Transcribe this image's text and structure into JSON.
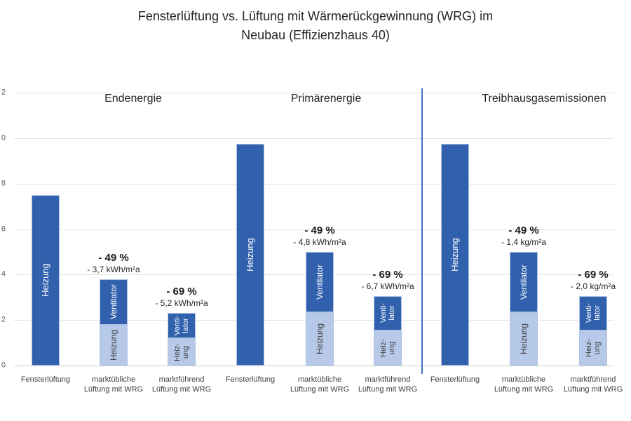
{
  "title": {
    "line1": "Fensterlüftung vs. Lüftung mit Wärmerückgewinnung (WRG) im",
    "line2": "Neubau (Effizienzhaus 40)"
  },
  "colors": {
    "bar_dark": "#3161AD",
    "bar_light": "#B7C9E8",
    "bar_border": "#AFC3E4",
    "divider": "#4472C4",
    "gridline": "#E3E3E3",
    "axis_line": "#CFCFCF",
    "text_dark": "#262626",
    "text_on_dark_bar": "#FFFFFF",
    "text_on_light_bar": "#3F3F3F"
  },
  "axis": {
    "ytick_labels_top_to_bottom": [
      "2",
      "0",
      "8",
      "6",
      "4",
      "2",
      "0"
    ]
  },
  "chart_data": {
    "type": "bar",
    "stacked": true,
    "title": "Fensterlüftung vs. Lüftung mit Wärmerückgewinnung (WRG) im Neubau (Effizienzhaus 40)",
    "ylim": [
      0,
      12
    ],
    "yticks": [
      0,
      2,
      4,
      6,
      8,
      10,
      12
    ],
    "ytick_note": "tick labels clipped at left image edge; only last digit visible",
    "grid": true,
    "legend_position": "none (series labeled inside bars)",
    "groups": [
      {
        "title": "Endenergie",
        "bars": [
          {
            "category": "Fensterlüftung",
            "display_category": "Fensterlüftung",
            "annotation": null,
            "segments": [
              {
                "name": "Heizung",
                "value": 7.5,
                "tone": "dark",
                "label": "Heizung"
              }
            ]
          },
          {
            "category": "marktübliche Lüftung mit WRG",
            "display_category": "marktübliche\nLüftung mit WRG",
            "annotation": {
              "percent": "- 49 %",
              "delta": "- 3,7 kWh/m²a"
            },
            "segments": [
              {
                "name": "Heizung",
                "value": 1.8,
                "tone": "light",
                "label": "Heizung"
              },
              {
                "name": "Ventilator",
                "value": 2.0,
                "tone": "dark",
                "label": "Ventilator"
              }
            ]
          },
          {
            "category": "marktführend Lüftung mit WRG",
            "display_category": "marktführend\nLüftung mit WRG",
            "annotation": {
              "percent": "- 69 %",
              "delta": "- 5,2 kWh/m²a"
            },
            "segments": [
              {
                "name": "Heizung",
                "value": 1.2,
                "tone": "light",
                "label": "Heiz-\nung"
              },
              {
                "name": "Ventilator",
                "value": 1.1,
                "tone": "dark",
                "label": "Venti-\nlator"
              }
            ]
          }
        ]
      },
      {
        "title": "Primärenergie",
        "bars": [
          {
            "category": "Fensterlüftung",
            "display_category": "Fensterlüftung",
            "annotation": null,
            "segments": [
              {
                "name": "Heizung",
                "value": 9.75,
                "tone": "dark",
                "label": "Heizung"
              }
            ]
          },
          {
            "category": "marktübliche Lüftung mit WRG",
            "display_category": "marktübliche\nLüftung mit WRG",
            "annotation": {
              "percent": "- 49 %",
              "delta": "- 4,8 kWh/m²a"
            },
            "segments": [
              {
                "name": "Heizung",
                "value": 2.35,
                "tone": "light",
                "label": "Heizung"
              },
              {
                "name": "Ventilator",
                "value": 2.65,
                "tone": "dark",
                "label": "Ventilator"
              }
            ]
          },
          {
            "category": "marktführend Lüftung mit WRG",
            "display_category": "marktführend\nLüftung mit WRG",
            "annotation": {
              "percent": "- 69 %",
              "delta": "- 6,7 kWh/m²a"
            },
            "segments": [
              {
                "name": "Heizung",
                "value": 1.55,
                "tone": "light",
                "label": "Heiz-\nung"
              },
              {
                "name": "Ventilator",
                "value": 1.5,
                "tone": "dark",
                "label": "Venti-\nlator"
              }
            ]
          }
        ]
      },
      {
        "title": "Treibhausgasemissionen",
        "bars": [
          {
            "category": "Fensterlüftung",
            "display_category": "Fensterlüftung",
            "annotation": null,
            "segments": [
              {
                "name": "Heizung",
                "value": 9.75,
                "tone": "dark",
                "label": "Heizung"
              }
            ]
          },
          {
            "category": "marktübliche Lüftung mit WRG",
            "display_category": "marktübliche\nLüftung mit WRG",
            "annotation": {
              "percent": "- 49 %",
              "delta": "- 1,4 kg/m²a"
            },
            "segments": [
              {
                "name": "Heizung",
                "value": 2.35,
                "tone": "light",
                "label": "Heizung"
              },
              {
                "name": "Ventilator",
                "value": 2.65,
                "tone": "dark",
                "label": "Ventilator"
              }
            ]
          },
          {
            "category": "marktführend Lüftung mit WRG",
            "display_category": "marktführend\nLüftung mit WRG",
            "annotation": {
              "percent": "- 69 %",
              "delta": "- 2,0 kg/m²a"
            },
            "segments": [
              {
                "name": "Heizung",
                "value": 1.55,
                "tone": "light",
                "label": "Heiz-\nung"
              },
              {
                "name": "Ventilator",
                "value": 1.5,
                "tone": "dark",
                "label": "Venti-\nlator"
              }
            ]
          }
        ]
      }
    ],
    "divider_between_groups": "single blue divider between Primärenergie and Treibhausgasemissionen"
  }
}
